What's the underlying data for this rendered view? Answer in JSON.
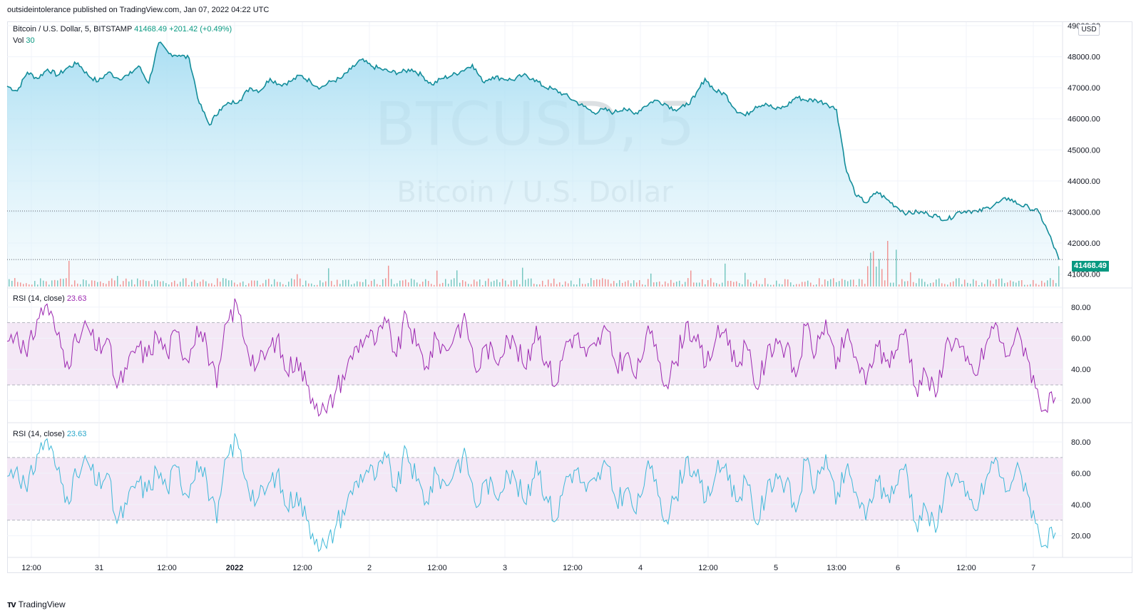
{
  "header": {
    "published": "outsideintolerance published on TradingView.com, Jan 07, 2022 04:22 UTC"
  },
  "main_legend": {
    "symbol": "Bitcoin / U.S. Dollar, 5, BITSTAMP",
    "price": "41468.49",
    "change": "+201.42 (+0.49%)",
    "vol_label": "Vol",
    "vol_value": "30"
  },
  "watermark": {
    "ticker": "BTCUSD, 5",
    "name": "Bitcoin / U.S. Dollar"
  },
  "price_badge": "41468.49",
  "currency": "USD",
  "rsi1": {
    "label": "RSI (14, close)",
    "value": "23.63",
    "color": "#9c27b0"
  },
  "rsi2": {
    "label": "RSI (14, close)",
    "value": "23.63",
    "color": "#4fc3f7"
  },
  "footer": {
    "brand": "TradingView",
    "logo": "tradingview-logo-icon"
  },
  "colors": {
    "line": "#138d9a",
    "fill": "#cbe9f7",
    "rsi_band": "#f3e5f5",
    "up": "#26a69a",
    "down": "#ef5350"
  },
  "chart_data": [
    {
      "type": "area",
      "title": "Bitcoin / U.S. Dollar, 5, BITSTAMP",
      "ylim": [
        40600,
        49000
      ],
      "y_ticks": [
        "49000.00",
        "48000.00",
        "47000.00",
        "46000.00",
        "45000.00",
        "44000.00",
        "43000.00",
        "42000.00",
        "41000.00"
      ],
      "x_ticks": [
        "12:00",
        "31",
        "12:00",
        "2022",
        "12:00",
        "2",
        "12:00",
        "3",
        "12:00",
        "4",
        "12:00",
        "5",
        "13:00",
        "6",
        "12:00",
        "7"
      ],
      "series": [
        {
          "values": [
            47050,
            46900,
            47500,
            47300,
            47600,
            47400,
            47650,
            47800,
            47400,
            47200,
            47500,
            47300,
            47400,
            47700,
            47150,
            48450,
            48100,
            48050,
            47950,
            46500,
            45800,
            46300,
            46500,
            46600,
            47000,
            46900,
            47300,
            47100,
            47200,
            47400,
            47200,
            47000,
            47200,
            47300,
            47600,
            47900,
            47700,
            47600,
            47500,
            47500,
            47600,
            47400,
            47100,
            47300,
            47400,
            47550,
            47750,
            47200,
            47350,
            47300,
            47250,
            47400,
            47300,
            47050,
            46950,
            46800,
            46600,
            46400,
            46200,
            46300,
            46200,
            46350,
            46150,
            46400,
            46600,
            46500,
            46300,
            46400,
            46700,
            47300,
            46900,
            46800,
            46300,
            46100,
            46400,
            46500,
            46300,
            46400,
            46700,
            46600,
            46600,
            46500,
            46300,
            44300,
            43500,
            43300,
            43650,
            43400,
            43150,
            42950,
            43000,
            42950,
            42850,
            42750,
            43000,
            43050,
            43000,
            43150,
            43300,
            43450,
            43250,
            43150,
            43000,
            42300,
            41468
          ]
        }
      ]
    },
    {
      "type": "line",
      "title": "RSI (14, close)",
      "ylim": [
        8,
        90
      ],
      "y_ticks": [
        "80.00",
        "60.00",
        "40.00",
        "20.00"
      ],
      "band": [
        30,
        70
      ],
      "series": [
        {
          "values": [
            58,
            64,
            48,
            72,
            82,
            62,
            45,
            58,
            68,
            52,
            60,
            28,
            40,
            55,
            48,
            62,
            50,
            64,
            46,
            68,
            55,
            28,
            70,
            82,
            55,
            42,
            50,
            60,
            38,
            48,
            30,
            18,
            12,
            28,
            40,
            55,
            62,
            58,
            70,
            48,
            75,
            55,
            42,
            60,
            52,
            66,
            70,
            38,
            56,
            44,
            62,
            54,
            40,
            68,
            45,
            30,
            58,
            62,
            48,
            55,
            66,
            42,
            50,
            34,
            62,
            56,
            30,
            45,
            70,
            58,
            42,
            60,
            66,
            42,
            56,
            28,
            46,
            60,
            54,
            35,
            68,
            50,
            72,
            40,
            62,
            48,
            30,
            56,
            45,
            52,
            66,
            28,
            38,
            22,
            56,
            60,
            45,
            36,
            55,
            70,
            48,
            62,
            54,
            28,
            14,
            22
          ]
        }
      ]
    },
    {
      "type": "line",
      "title": "RSI (14, close)",
      "ylim": [
        8,
        90
      ],
      "y_ticks": [
        "80.00",
        "60.00",
        "40.00",
        "20.00"
      ],
      "band": [
        30,
        70
      ],
      "series": [
        {
          "values": [
            58,
            64,
            48,
            72,
            82,
            62,
            45,
            58,
            68,
            52,
            60,
            28,
            40,
            55,
            48,
            62,
            50,
            64,
            46,
            68,
            55,
            28,
            70,
            82,
            55,
            42,
            50,
            60,
            38,
            48,
            30,
            18,
            12,
            28,
            40,
            55,
            62,
            58,
            70,
            48,
            75,
            55,
            42,
            60,
            52,
            66,
            70,
            38,
            56,
            44,
            62,
            54,
            40,
            68,
            45,
            30,
            58,
            62,
            48,
            55,
            66,
            42,
            50,
            34,
            62,
            56,
            30,
            45,
            70,
            58,
            42,
            60,
            66,
            42,
            56,
            28,
            46,
            60,
            54,
            35,
            68,
            50,
            72,
            40,
            62,
            48,
            30,
            56,
            45,
            52,
            66,
            28,
            38,
            22,
            56,
            60,
            45,
            36,
            55,
            70,
            48,
            62,
            54,
            28,
            14,
            22
          ]
        }
      ]
    }
  ]
}
